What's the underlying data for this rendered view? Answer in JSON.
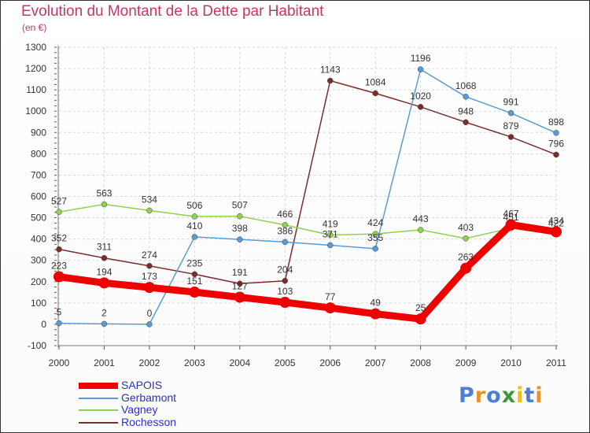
{
  "header": {
    "title": "Evolution du Montant de la Dette par Habitant",
    "subtitle": "(en €)"
  },
  "brand": {
    "text": "Proxiti"
  },
  "chart_data": {
    "type": "line",
    "title": "Evolution du Montant de la Dette par Habitant",
    "subtitle": "(en €)",
    "xlabel": "",
    "ylabel": "",
    "x": [
      "2000",
      "2001",
      "2002",
      "2003",
      "2004",
      "2005",
      "2006",
      "2007",
      "2008",
      "2009",
      "2010",
      "2011"
    ],
    "ylim": [
      -100,
      1300
    ],
    "yticks": [
      "-100",
      "0",
      "100",
      "200",
      "300",
      "400",
      "500",
      "600",
      "700",
      "800",
      "900",
      "1000",
      "1100",
      "1200",
      "1300"
    ],
    "grid": true,
    "legend_position": "bottom-left",
    "series": [
      {
        "name": "SAPOIS",
        "color": "#ee0000",
        "values": [
          223,
          194,
          173,
          151,
          127,
          103,
          77,
          49,
          25,
          263,
          467,
          434
        ],
        "labels": [
          "223",
          "194",
          "173",
          "151",
          "127",
          "103",
          "77",
          "49",
          "25",
          "263",
          "467",
          "434"
        ]
      },
      {
        "name": "Gerbamont",
        "color": "#5b9bd5",
        "values": [
          5,
          2,
          0,
          410,
          398,
          386,
          371,
          355,
          1196,
          1068,
          991,
          898
        ],
        "labels": [
          "5",
          "2",
          "0",
          "410",
          "398",
          "386",
          "371",
          "355",
          "1196",
          "1068",
          "991",
          "898"
        ]
      },
      {
        "name": "Vagney",
        "color": "#92d050",
        "values": [
          527,
          563,
          534,
          506,
          507,
          466,
          419,
          424,
          443,
          403,
          451,
          422
        ],
        "labels": [
          "527",
          "563",
          "534",
          "506",
          "507",
          "466",
          "419",
          "424",
          "443",
          "403",
          "451",
          "422"
        ]
      },
      {
        "name": "Rochesson",
        "color": "#7b2c2c",
        "values": [
          352,
          311,
          274,
          235,
          191,
          204,
          1143,
          1084,
          1020,
          948,
          879,
          796
        ],
        "labels": [
          "352",
          "311",
          "274",
          "235",
          "191",
          "204",
          "1143",
          "1084",
          "1020",
          "948",
          "879",
          "796"
        ]
      }
    ]
  }
}
